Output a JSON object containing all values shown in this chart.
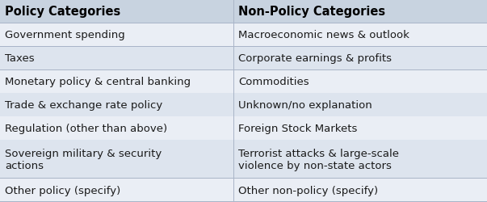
{
  "col1_header": "Policy Categories",
  "col2_header": "Non-Policy Categories",
  "rows": [
    [
      "Government spending",
      "Macroeconomic news & outlook"
    ],
    [
      "Taxes",
      "Corporate earnings & profits"
    ],
    [
      "Monetary policy & central banking",
      "Commodities"
    ],
    [
      "Trade & exchange rate policy",
      "Unknown/no explanation"
    ],
    [
      "Regulation (other than above)",
      "Foreign Stock Markets"
    ],
    [
      "Sovereign military & security\nactions",
      "Terrorist attacks & large-scale\nviolence by non-state actors"
    ],
    [
      "Other policy (specify)",
      "Other non-policy (specify)"
    ]
  ],
  "header_bg": "#c8d3e0",
  "row_bg_odd": "#dde4ee",
  "row_bg_even": "#eaeef5",
  "text_color": "#1a1a1a",
  "header_text_color": "#000000",
  "font_size": 9.5,
  "header_font_size": 10.5,
  "col_split": 0.48,
  "fig_width": 6.03,
  "fig_height": 2.51,
  "line_color": "#aab5c8"
}
